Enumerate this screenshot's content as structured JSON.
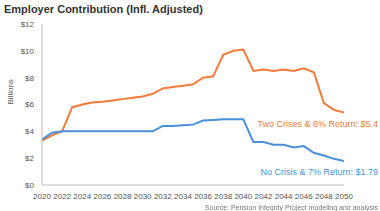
{
  "chart_data": {
    "type": "line",
    "title": "Employer Contribution (Infl. Adjusted)",
    "y_label": "Billions",
    "source": "Source: Pension Integrity Project modeling and analysis",
    "x": [
      2020,
      2021,
      2022,
      2023,
      2024,
      2025,
      2026,
      2027,
      2028,
      2029,
      2030,
      2031,
      2032,
      2033,
      2034,
      2035,
      2036,
      2037,
      2038,
      2039,
      2040,
      2041,
      2042,
      2043,
      2044,
      2045,
      2046,
      2047,
      2048,
      2049,
      2050
    ],
    "xlim": [
      2020,
      2050
    ],
    "xticks": [
      2020,
      2022,
      2024,
      2026,
      2028,
      2030,
      2032,
      2034,
      2036,
      2038,
      2040,
      2042,
      2044,
      2046,
      2048,
      2050
    ],
    "ylim": [
      0,
      12
    ],
    "yticks": [
      {
        "value": 0,
        "label": "$0"
      },
      {
        "value": 2,
        "label": "$2"
      },
      {
        "value": 4,
        "label": "$4"
      },
      {
        "value": 6,
        "label": "$6"
      },
      {
        "value": 8,
        "label": "$8"
      },
      {
        "value": 10,
        "label": "$10"
      },
      {
        "value": 12,
        "label": "$12"
      }
    ],
    "grid": false,
    "series": [
      {
        "name": "Two Crises & 6% Return: $5.4",
        "color": "#f47a3a",
        "values": [
          3.3,
          3.7,
          4.0,
          5.8,
          6.0,
          6.15,
          6.2,
          6.3,
          6.4,
          6.5,
          6.6,
          6.8,
          7.2,
          7.3,
          7.4,
          7.5,
          8.0,
          8.1,
          9.7,
          10.0,
          10.1,
          8.5,
          8.6,
          8.5,
          8.6,
          8.5,
          8.7,
          8.4,
          6.1,
          5.6,
          5.4
        ]
      },
      {
        "name": "No Crisis & 7% Return: $1.79",
        "color": "#4a8fdb",
        "values": [
          3.4,
          3.9,
          4.0,
          4.0,
          4.0,
          4.0,
          4.0,
          4.0,
          4.0,
          4.0,
          4.0,
          4.0,
          4.4,
          4.4,
          4.45,
          4.5,
          4.8,
          4.85,
          4.9,
          4.9,
          4.9,
          3.2,
          3.2,
          3.0,
          3.0,
          2.8,
          2.9,
          2.4,
          2.2,
          1.95,
          1.79
        ]
      }
    ]
  }
}
